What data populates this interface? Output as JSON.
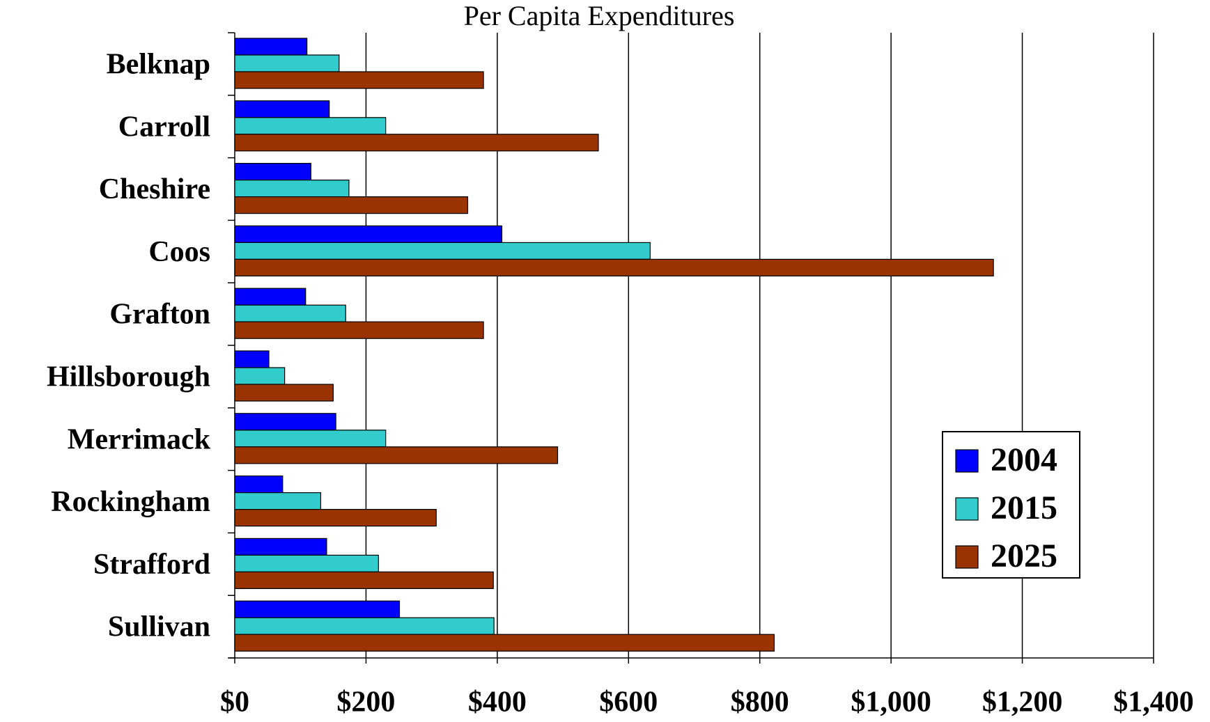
{
  "chart_data": {
    "type": "bar",
    "orientation": "horizontal",
    "title": "Per Capita Expenditures",
    "categories": [
      "Belknap",
      "Carroll",
      "Cheshire",
      "Coos",
      "Grafton",
      "Hillsborough",
      "Merrimack",
      "Rockingham",
      "Strafford",
      "Sullivan"
    ],
    "series": [
      {
        "name": "2004",
        "color": "#0000ff",
        "values": [
          110,
          144,
          116,
          407,
          108,
          52,
          154,
          73,
          140,
          251
        ]
      },
      {
        "name": "2015",
        "color": "#33cccc",
        "values": [
          159,
          230,
          174,
          633,
          169,
          76,
          230,
          131,
          219,
          395
        ]
      },
      {
        "name": "2025",
        "color": "#993300",
        "values": [
          379,
          554,
          355,
          1156,
          379,
          150,
          492,
          307,
          394,
          822
        ]
      }
    ],
    "xlim": [
      0,
      1400
    ],
    "xticks": [
      {
        "value": 0,
        "label": "$0"
      },
      {
        "value": 200,
        "label": "$200"
      },
      {
        "value": 400,
        "label": "$400"
      },
      {
        "value": 600,
        "label": "$600"
      },
      {
        "value": 800,
        "label": "$800"
      },
      {
        "value": 1000,
        "label": "$1,000"
      },
      {
        "value": 1200,
        "label": "$1,200"
      },
      {
        "value": 1400,
        "label": "$1,400"
      }
    ],
    "grid": true,
    "legend": "right"
  }
}
